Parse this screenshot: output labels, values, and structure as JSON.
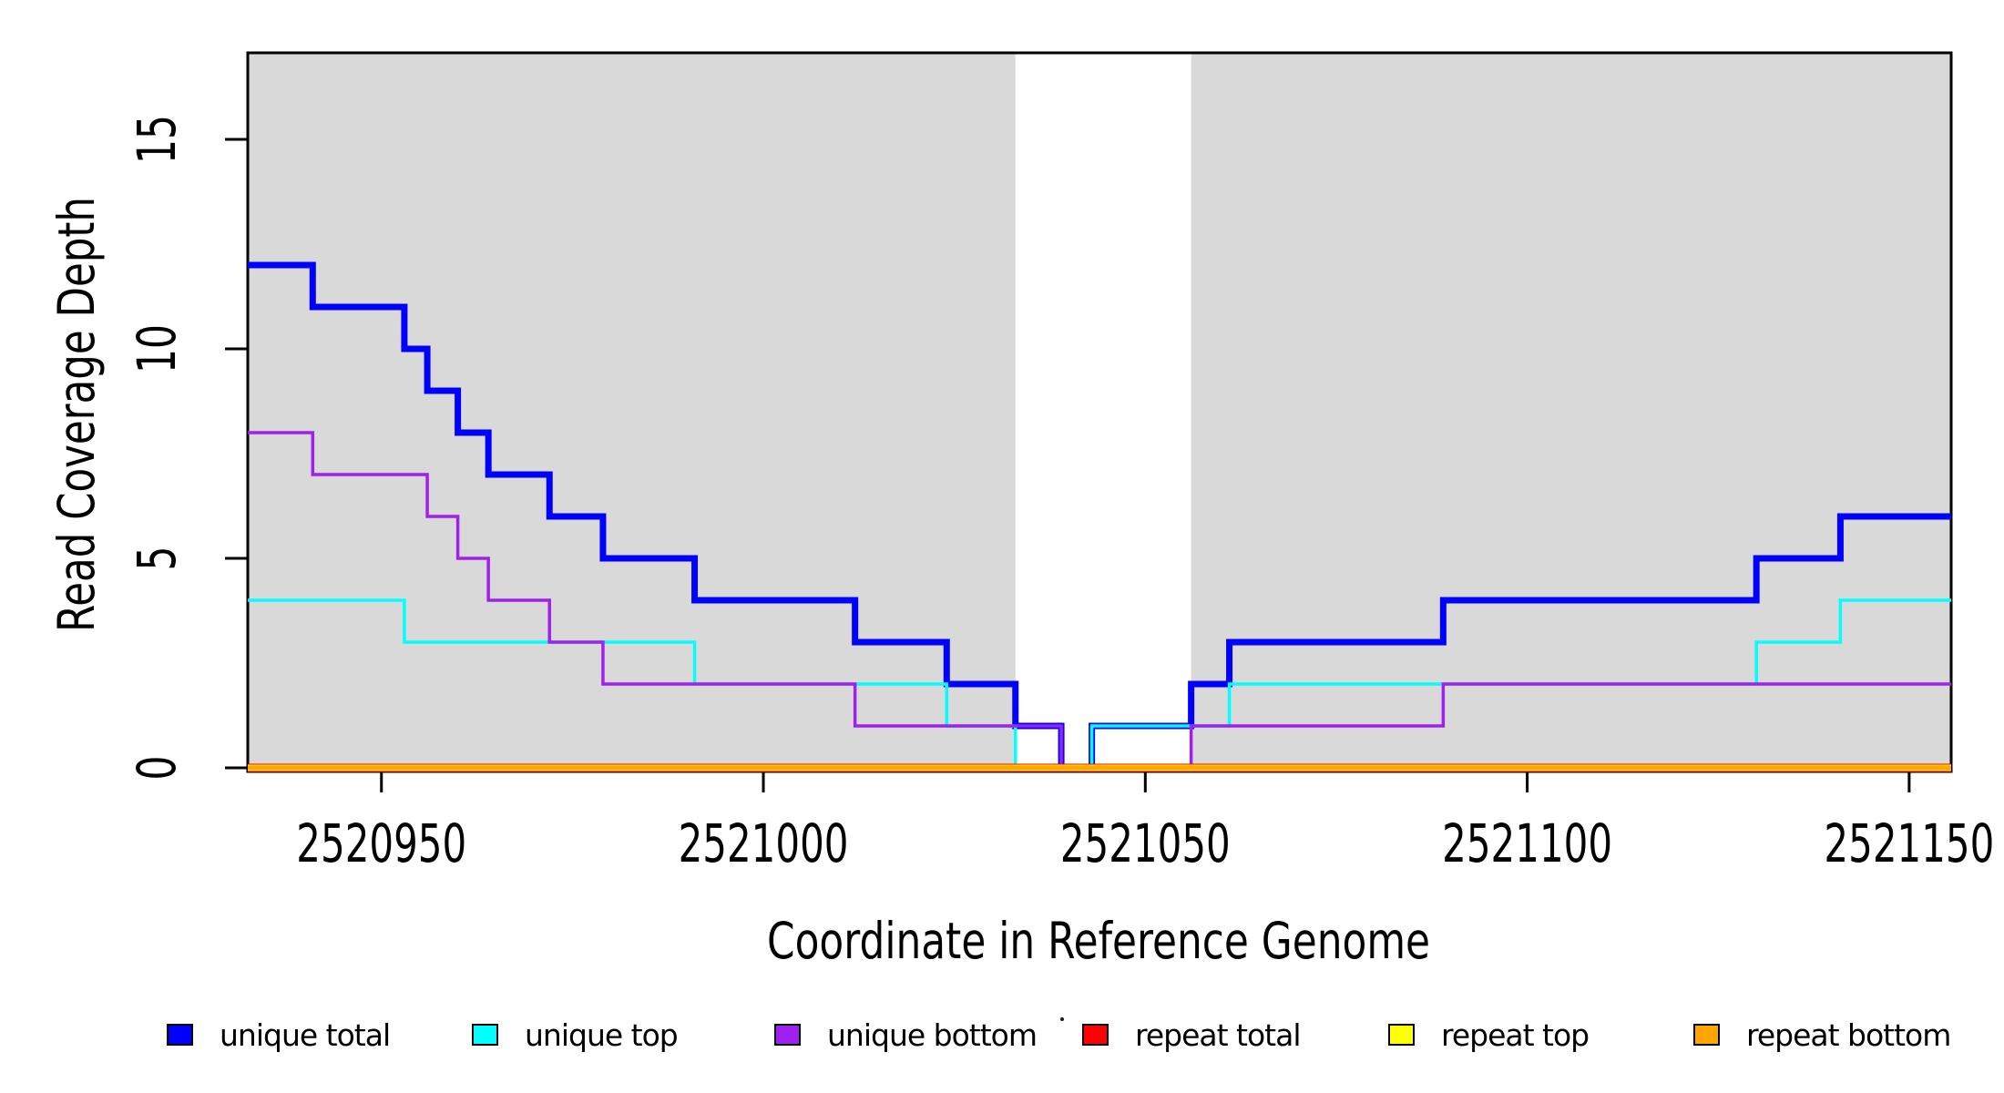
{
  "figure": {
    "background_color": "#FFFFFF",
    "plot_background_color": "#FFFFFF",
    "shading_color": "#D9D9D9"
  },
  "chart_data": {
    "type": "line",
    "subtype": "step",
    "title": "",
    "xlabel": "Coordinate in Reference Genome",
    "ylabel": "Read Coverage Depth",
    "xlim": [
      2520932.5,
      2521155.5
    ],
    "ylim": [
      0,
      17.06
    ],
    "grid": false,
    "x_ticks": [
      {
        "value": 2520950,
        "label": "2520950"
      },
      {
        "value": 2521000,
        "label": "2521000"
      },
      {
        "value": 2521050,
        "label": "2521050"
      },
      {
        "value": 2521100,
        "label": "2521100"
      },
      {
        "value": 2521150,
        "label": "2521150"
      }
    ],
    "y_ticks": [
      {
        "value": 0,
        "label": "0"
      },
      {
        "value": 5,
        "label": "5"
      },
      {
        "value": 10,
        "label": "10"
      },
      {
        "value": 15,
        "label": "15"
      }
    ],
    "shaded_regions": [
      {
        "from": 2520932.5,
        "to": 2521033,
        "color": "#D9D9D9"
      },
      {
        "from": 2521056,
        "to": 2521155.5,
        "color": "#D9D9D9"
      }
    ],
    "series": [
      {
        "name": "unique total",
        "color": "#0000FF",
        "start_value": 12,
        "steps": [
          [
            2520941,
            11
          ],
          [
            2520953,
            10
          ],
          [
            2520956,
            9
          ],
          [
            2520960,
            8
          ],
          [
            2520964,
            7
          ],
          [
            2520972,
            6
          ],
          [
            2520979,
            5
          ],
          [
            2520991,
            4
          ],
          [
            2521012,
            3
          ],
          [
            2521024,
            2
          ],
          [
            2521033,
            1
          ],
          [
            2521039,
            0
          ],
          [
            2521043,
            1
          ],
          [
            2521056,
            2
          ],
          [
            2521061,
            3
          ],
          [
            2521089,
            4
          ],
          [
            2521130,
            5
          ],
          [
            2521141,
            6
          ]
        ]
      },
      {
        "name": "unique top",
        "color": "#00FFFF",
        "start_value": 4,
        "steps": [
          [
            2520953,
            3
          ],
          [
            2520991,
            2
          ],
          [
            2521024,
            1
          ],
          [
            2521033,
            0
          ],
          [
            2521043,
            1
          ],
          [
            2521061,
            2
          ],
          [
            2521130,
            3
          ],
          [
            2521141,
            4
          ]
        ]
      },
      {
        "name": "unique bottom",
        "color": "#A020F0",
        "start_value": 8,
        "steps": [
          [
            2520941,
            7
          ],
          [
            2520956,
            6
          ],
          [
            2520960,
            5
          ],
          [
            2520964,
            4
          ],
          [
            2520972,
            3
          ],
          [
            2520979,
            2
          ],
          [
            2521012,
            1
          ],
          [
            2521039,
            0
          ],
          [
            2521056,
            1
          ],
          [
            2521089,
            2
          ]
        ]
      },
      {
        "name": "repeat total",
        "color": "#FF0000",
        "start_value": 0,
        "steps": []
      },
      {
        "name": "repeat top",
        "color": "#FFFF00",
        "start_value": 0,
        "steps": []
      },
      {
        "name": "repeat bottom",
        "color": "#FFA500",
        "start_value": 0,
        "steps": []
      }
    ],
    "legend": {
      "position": "bottom",
      "entries": [
        {
          "label": "unique total",
          "color": "#0000FF"
        },
        {
          "label": "unique top",
          "color": "#00FFFF"
        },
        {
          "label": "unique bottom",
          "color": "#A020F0"
        },
        {
          "label": "repeat total",
          "color": "#FF0000"
        },
        {
          "label": "repeat top",
          "color": "#FFFF00"
        },
        {
          "label": "repeat bottom",
          "color": "#FFA500"
        }
      ]
    }
  }
}
